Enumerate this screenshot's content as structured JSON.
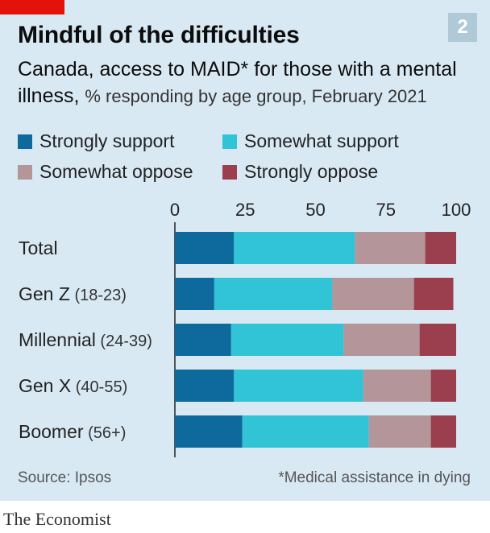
{
  "header": {
    "title": "Mindful of the difficulties",
    "chart_number": "2",
    "subtitle_main": "Canada, access to MAID* for those with a mental illness,",
    "subtitle_detail": "% responding by age group, February 2021"
  },
  "footer": {
    "source": "Source: Ipsos",
    "note": "*Medical assistance in dying",
    "brand": "The Economist"
  },
  "colors": {
    "strongly_support": "#0e6a9c",
    "somewhat_support": "#31c4d6",
    "somewhat_oppose": "#b3959a",
    "strongly_oppose": "#9b3e4e",
    "background": "#d9e9f3",
    "accent": "#e3120b"
  },
  "chart_data": {
    "type": "bar",
    "orientation": "horizontal",
    "stacked": true,
    "xlim": [
      0,
      100
    ],
    "xticks": [
      "0",
      "25",
      "50",
      "75",
      "100"
    ],
    "legend_position": "top",
    "grid": false,
    "categories": [
      {
        "main": "Total",
        "sub": ""
      },
      {
        "main": "Gen Z",
        "sub": "(18-23)"
      },
      {
        "main": "Millennial",
        "sub": "(24-39)"
      },
      {
        "main": "Gen X",
        "sub": "(40-55)"
      },
      {
        "main": "Boomer",
        "sub": "(56+)"
      }
    ],
    "series": [
      {
        "name": "Strongly support",
        "values": [
          21,
          14,
          20,
          21,
          24
        ]
      },
      {
        "name": "Somewhat support",
        "values": [
          43,
          42,
          40,
          46,
          45
        ]
      },
      {
        "name": "Somewhat oppose",
        "values": [
          25,
          29,
          27,
          24,
          22
        ]
      },
      {
        "name": "Strongly oppose",
        "values": [
          11,
          14,
          13,
          9,
          9
        ]
      }
    ]
  }
}
